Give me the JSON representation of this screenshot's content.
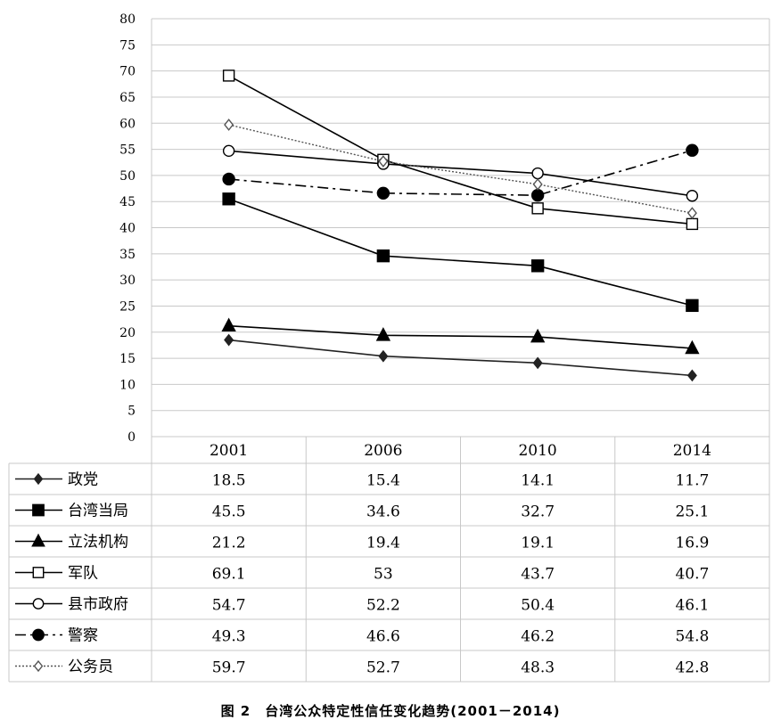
{
  "caption": "图 2　台湾公众特定性信任变化趋势(2001－2014)",
  "chart_data": {
    "type": "line",
    "categories": [
      "2001",
      "2006",
      "2010",
      "2014"
    ],
    "ylim": [
      0,
      80
    ],
    "ytick_step": 5,
    "grid": true,
    "data_table": true,
    "series": [
      {
        "name": "政党",
        "values": [
          18.5,
          15.4,
          14.1,
          11.7
        ],
        "marker": "diamond-filled",
        "dash": "solid",
        "color": "#222222"
      },
      {
        "name": "台湾当局",
        "values": [
          45.5,
          34.6,
          32.7,
          25.1
        ],
        "marker": "square-filled",
        "dash": "solid",
        "color": "#000000"
      },
      {
        "name": "立法机构",
        "values": [
          21.2,
          19.4,
          19.1,
          16.9
        ],
        "marker": "triangle-filled",
        "dash": "solid",
        "color": "#000000"
      },
      {
        "name": "军队",
        "values": [
          69.1,
          53,
          43.7,
          40.7
        ],
        "marker": "square-open",
        "dash": "solid",
        "color": "#000000"
      },
      {
        "name": "县市政府",
        "values": [
          54.7,
          52.2,
          50.4,
          46.1
        ],
        "marker": "circle-open",
        "dash": "solid",
        "color": "#000000"
      },
      {
        "name": "警察",
        "values": [
          49.3,
          46.6,
          46.2,
          54.8
        ],
        "marker": "circle-filled",
        "dash": "dashdot",
        "color": "#000000"
      },
      {
        "name": "公务员",
        "values": [
          59.7,
          52.7,
          48.3,
          42.8
        ],
        "marker": "diamond-open",
        "dash": "dotted",
        "color": "#555555"
      }
    ]
  }
}
